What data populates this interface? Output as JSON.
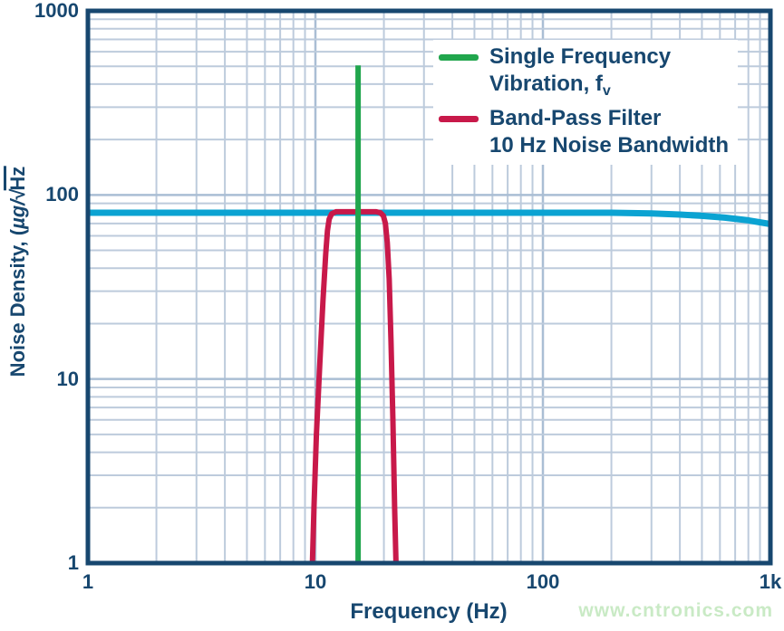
{
  "colors": {
    "navy": "#17476f",
    "grid_minor": "#bdcbdc",
    "grid_major": "#aabed4",
    "cyan": "#0ba3d2",
    "green": "#21a64d",
    "red": "#c8194a",
    "watermark_green": "#c9eac5"
  },
  "watermark": "www.cntronics.com",
  "chart_data": {
    "type": "line",
    "title": "",
    "xlabel": "Frequency (Hz)",
    "ylabel": "Noise Density, (µg/√Hz",
    "ylabel_parts": {
      "prefix": "Noise Density, (",
      "unit": "µg/",
      "sqrt": "√",
      "radicand": "Hz"
    },
    "xscale": "log",
    "yscale": "log",
    "xlim": [
      1,
      1000
    ],
    "ylim": [
      1,
      1000
    ],
    "grid": true,
    "xticks": [
      {
        "value": 1,
        "label": "1"
      },
      {
        "value": 10,
        "label": "10"
      },
      {
        "value": 100,
        "label": "100"
      },
      {
        "value": 1000,
        "label": "1k"
      }
    ],
    "yticks": [
      {
        "value": 1,
        "label": "1"
      },
      {
        "value": 10,
        "label": "10"
      },
      {
        "value": 100,
        "label": "100"
      },
      {
        "value": 1000,
        "label": "1000"
      }
    ],
    "legend": {
      "position": "top-right",
      "items": [
        {
          "color": "#21a64d",
          "lines": [
            {
              "text": "Single Frequency",
              "sub": ""
            },
            {
              "text": "Vibration, f",
              "sub": "v"
            }
          ]
        },
        {
          "color": "#c8194a",
          "lines": [
            {
              "text": "Band-Pass Filter",
              "sub": ""
            },
            {
              "text": "10 Hz Noise Bandwidth",
              "sub": ""
            }
          ]
        }
      ]
    },
    "series": [
      {
        "name": "vibration-noise-density",
        "color": "#0ba3d2",
        "stroke_width": 7,
        "points": [
          [
            1,
            80
          ],
          [
            100,
            80
          ],
          [
            200,
            80
          ],
          [
            300,
            79.3
          ],
          [
            400,
            78.2
          ],
          [
            500,
            77
          ],
          [
            630,
            75.3
          ],
          [
            800,
            72.8
          ],
          [
            1000,
            69.5
          ]
        ]
      },
      {
        "name": "band-pass-filter",
        "color": "#c8194a",
        "stroke_width": 6,
        "points": [
          [
            9.7,
            1
          ],
          [
            9.85,
            2
          ],
          [
            10.1,
            5
          ],
          [
            10.45,
            12
          ],
          [
            10.8,
            27
          ],
          [
            11.1,
            48
          ],
          [
            11.3,
            64
          ],
          [
            11.5,
            74
          ],
          [
            11.8,
            79
          ],
          [
            12.3,
            81
          ],
          [
            18.5,
            81
          ],
          [
            19.3,
            80
          ],
          [
            19.9,
            77
          ],
          [
            20.3,
            70
          ],
          [
            20.7,
            55
          ],
          [
            21.1,
            35
          ],
          [
            21.5,
            16
          ],
          [
            21.9,
            6
          ],
          [
            22.3,
            2
          ],
          [
            22.6,
            1
          ]
        ]
      },
      {
        "name": "single-frequency-vibration",
        "color": "#21a64d",
        "stroke_width": 6,
        "points": [
          [
            15.4,
            1
          ],
          [
            15.4,
            505
          ]
        ]
      }
    ]
  }
}
